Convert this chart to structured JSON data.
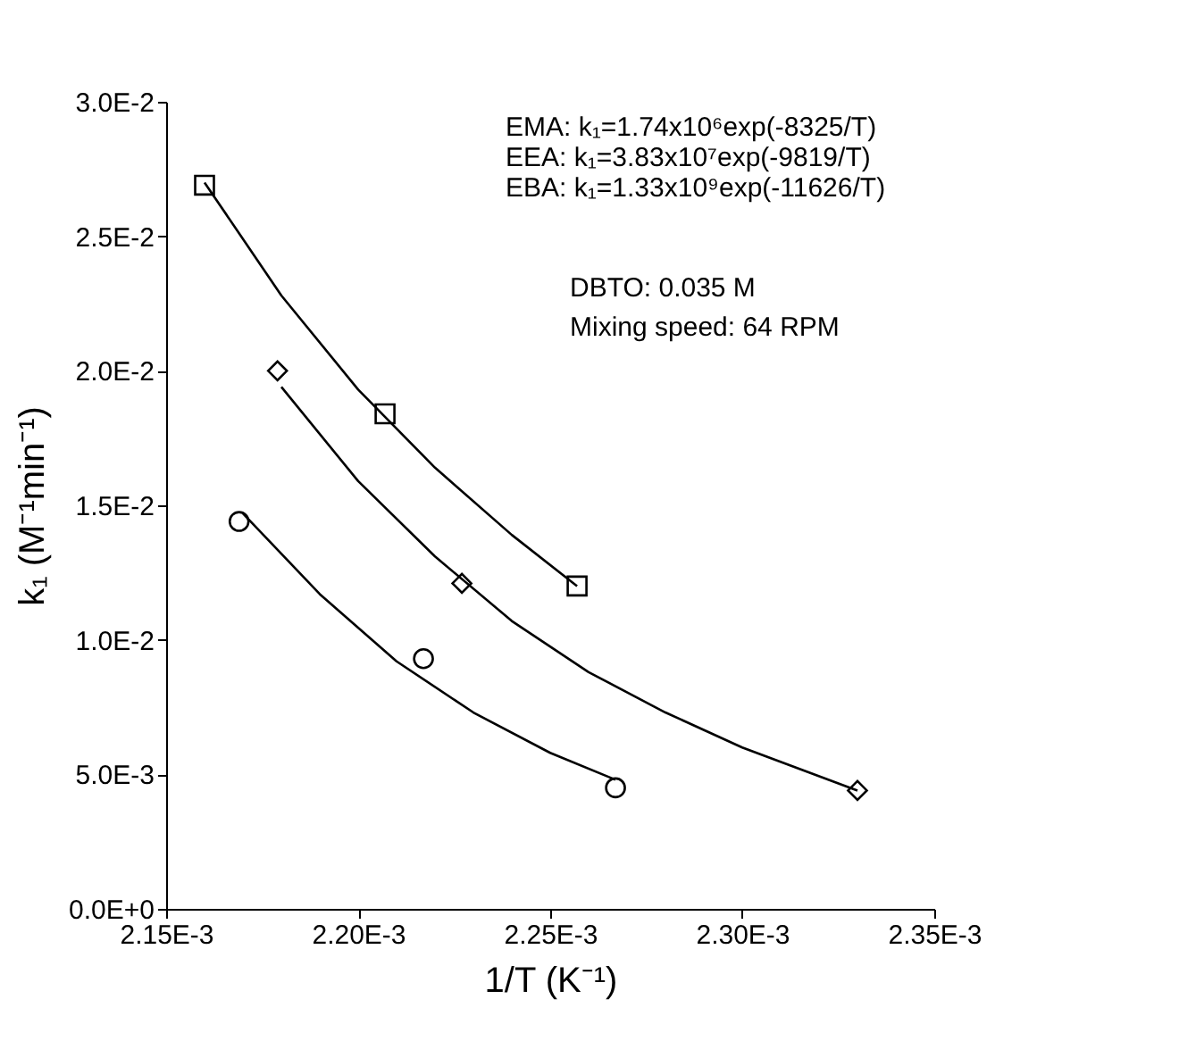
{
  "chart_data": {
    "type": "scatter",
    "xlabel": "1/T (K⁻¹)",
    "ylabel": "k₁ (M⁻¹min⁻¹)",
    "xlim": [
      0.00215,
      0.00235
    ],
    "xticks": [
      {
        "value": 0.00215,
        "label": "2.15E-3"
      },
      {
        "value": 0.0022,
        "label": "2.20E-3"
      },
      {
        "value": 0.00225,
        "label": "2.25E-3"
      },
      {
        "value": 0.0023,
        "label": "2.30E-3"
      },
      {
        "value": 0.00235,
        "label": "2.35E-3"
      }
    ],
    "ylim": [
      0,
      0.03
    ],
    "yticks": [
      {
        "value": 0,
        "label": "0.0E+0"
      },
      {
        "value": 0.005,
        "label": "5.0E-3"
      },
      {
        "value": 0.01,
        "label": "1.0E-2"
      },
      {
        "value": 0.015,
        "label": "1.5E-2"
      },
      {
        "value": 0.02,
        "label": "2.0E-2"
      },
      {
        "value": 0.025,
        "label": "2.5E-2"
      },
      {
        "value": 0.03,
        "label": "3.0E-2"
      }
    ],
    "grid": false,
    "series": [
      {
        "marker": "square",
        "color": "#000000",
        "x": [
          0.00216,
          0.002207,
          0.002257
        ],
        "values": [
          0.0269,
          0.0184,
          0.012
        ]
      },
      {
        "marker": "diamond",
        "color": "#000000",
        "x": [
          0.002179,
          0.002227,
          0.00233
        ],
        "values": [
          0.02,
          0.0121,
          0.0044
        ]
      },
      {
        "marker": "circle",
        "color": "#000000",
        "x": [
          0.002169,
          0.002217,
          0.002267
        ],
        "values": [
          0.0144,
          0.0093,
          0.0045
        ]
      },
      {
        "type": "line",
        "marker": "none",
        "line_style": "solid",
        "color": "#000000",
        "x": [
          0.00216,
          0.00218,
          0.0022,
          0.00222,
          0.00224,
          0.002257
        ],
        "values": [
          0.027,
          0.0228,
          0.0193,
          0.0164,
          0.0139,
          0.012
        ]
      },
      {
        "type": "line",
        "marker": "none",
        "line_style": "solid",
        "color": "#000000",
        "x": [
          0.00218,
          0.0022,
          0.00222,
          0.00224,
          0.00226,
          0.00228,
          0.0023,
          0.00233
        ],
        "values": [
          0.0194,
          0.0159,
          0.0131,
          0.0107,
          0.0088,
          0.0073,
          0.006,
          0.0044
        ]
      },
      {
        "type": "line",
        "marker": "none",
        "line_style": "solid",
        "color": "#000000",
        "x": [
          0.00217,
          0.00219,
          0.00221,
          0.00223,
          0.00225,
          0.002267
        ],
        "values": [
          0.0147,
          0.0117,
          0.0092,
          0.0073,
          0.0058,
          0.0048
        ]
      }
    ],
    "annotations": [
      "EMA:  k₁=1.74x10⁶exp(-8325/T)",
      "EEA:  k₁=3.83x10⁷exp(-9819/T)",
      "EBA:  k₁=1.33x10⁹exp(-11626/T)",
      "DBTO:  0.035  M",
      "Mixing  speed:  64  RPM"
    ]
  }
}
